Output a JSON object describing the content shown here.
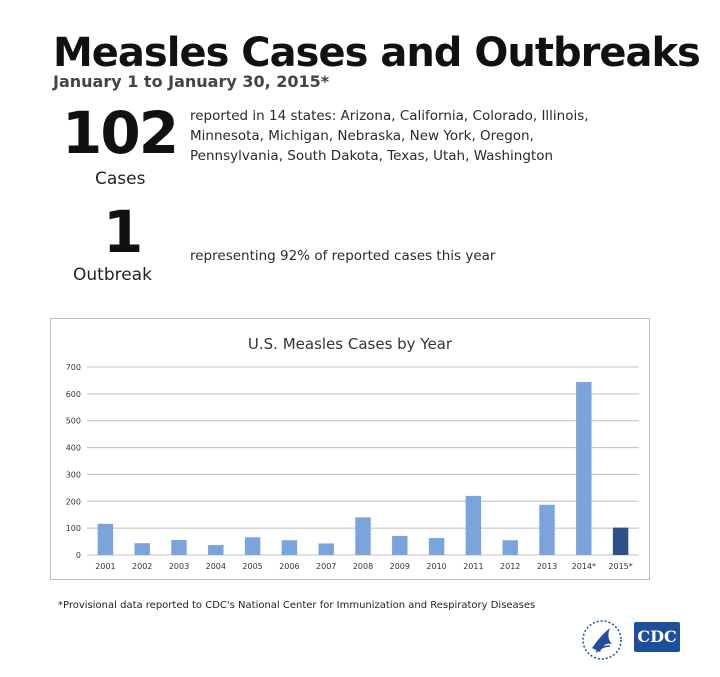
{
  "header": {
    "title": "Measles Cases and Outbreaks",
    "subtitle": "January 1 to January 30, 2015*"
  },
  "cases": {
    "number": "102",
    "label": "Cases",
    "description": "reported in 14 states: Arizona, California, Colorado, Illinois, Minnesota, Michigan, Nebraska, New York, Oregon, Pennsylvania, South Dakota, Texas, Utah, Washington"
  },
  "outbreak": {
    "number": "1",
    "label": "Outbreak",
    "description": "representing 92% of reported cases this year"
  },
  "footnote": "*Provisional data reported to CDC's National Center for Immunization and Respiratory Diseases",
  "logos": {
    "hhs": "hhs-eagle-logo",
    "cdc": "CDC"
  },
  "colors": {
    "bar": "#7ba3dc",
    "bar_highlight": "#2f4f8a",
    "grid": "#bfbfbf",
    "cdc_blue": "#1f4e9c"
  },
  "chart_data": {
    "type": "bar",
    "title": "U.S. Measles Cases by Year",
    "xlabel": "",
    "ylabel": "",
    "categories": [
      "2001",
      "2002",
      "2003",
      "2004",
      "2005",
      "2006",
      "2007",
      "2008",
      "2009",
      "2010",
      "2011",
      "2012",
      "2013",
      "2014*",
      "2015*"
    ],
    "values": [
      116,
      44,
      56,
      37,
      66,
      55,
      43,
      140,
      71,
      63,
      220,
      55,
      187,
      644,
      102
    ],
    "highlight_index": 14,
    "ylim": [
      0,
      700
    ],
    "yticks": [
      0,
      100,
      200,
      300,
      400,
      500,
      600,
      700
    ],
    "grid": true
  }
}
